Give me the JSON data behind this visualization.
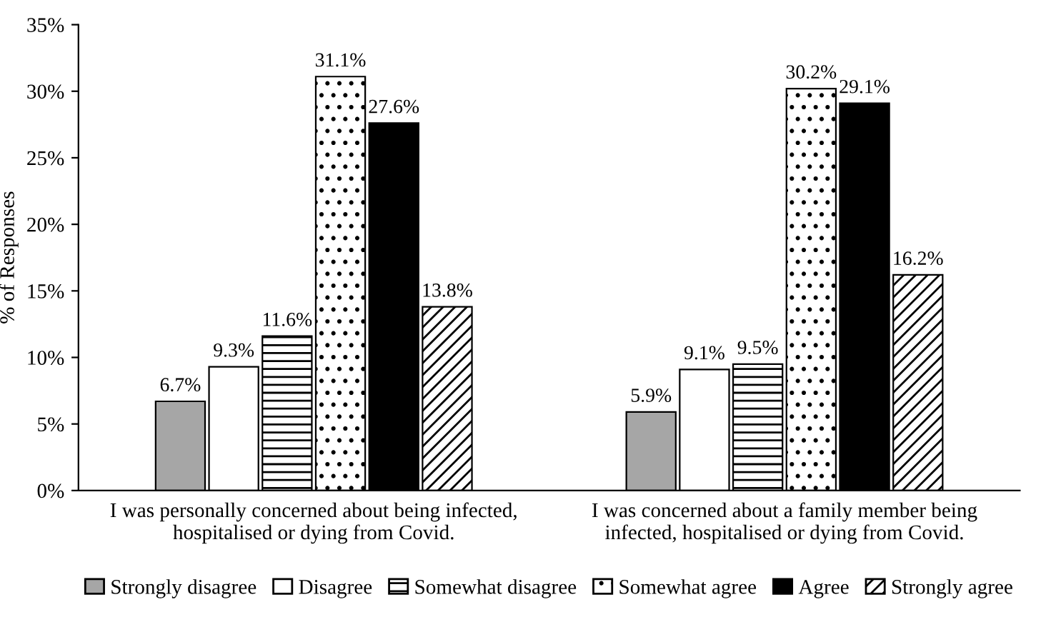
{
  "chart_data": {
    "type": "bar",
    "ylabel": "% of Responses",
    "categories": [
      "I was personally concerned about being infected,\nhospitalised or dying from Covid.",
      "I was concerned about a family member being\ninfected, hospitalised or dying from Covid."
    ],
    "series": [
      {
        "name": "Strongly disagree",
        "color": "#a6a6a6",
        "values": [
          6.7,
          5.9
        ],
        "value_labels": [
          "6.7%",
          "5.9%"
        ]
      },
      {
        "name": "Disagree",
        "color": "#ffffff",
        "values": [
          9.3,
          9.1
        ],
        "value_labels": [
          "9.3%",
          "9.1%"
        ]
      },
      {
        "name": "Somewhat disagree",
        "color": "#000000",
        "values": [
          11.6,
          9.5
        ],
        "value_labels": [
          "11.6%",
          "9.5%"
        ]
      },
      {
        "name": "Somewhat agree",
        "color": "#000000",
        "values": [
          31.1,
          30.2
        ],
        "value_labels": [
          "31.1%",
          "30.2%"
        ]
      },
      {
        "name": "Agree",
        "color": "#000000",
        "values": [
          27.6,
          29.1
        ],
        "value_labels": [
          "27.6%",
          "29.1%"
        ]
      },
      {
        "name": "Strongly agree",
        "color": "#000000",
        "values": [
          13.8,
          16.2
        ],
        "value_labels": [
          "13.8%",
          "16.2%"
        ]
      }
    ],
    "ylim": [
      0,
      35
    ],
    "yticks": [
      {
        "value": 0,
        "label": "0%"
      },
      {
        "value": 5,
        "label": "5%"
      },
      {
        "value": 10,
        "label": "10%"
      },
      {
        "value": 15,
        "label": "15%"
      },
      {
        "value": 20,
        "label": "20%"
      },
      {
        "value": 25,
        "label": "25%"
      },
      {
        "value": 30,
        "label": "30%"
      },
      {
        "value": 35,
        "label": "35%"
      }
    ],
    "grid": false,
    "legend": "bottom"
  }
}
